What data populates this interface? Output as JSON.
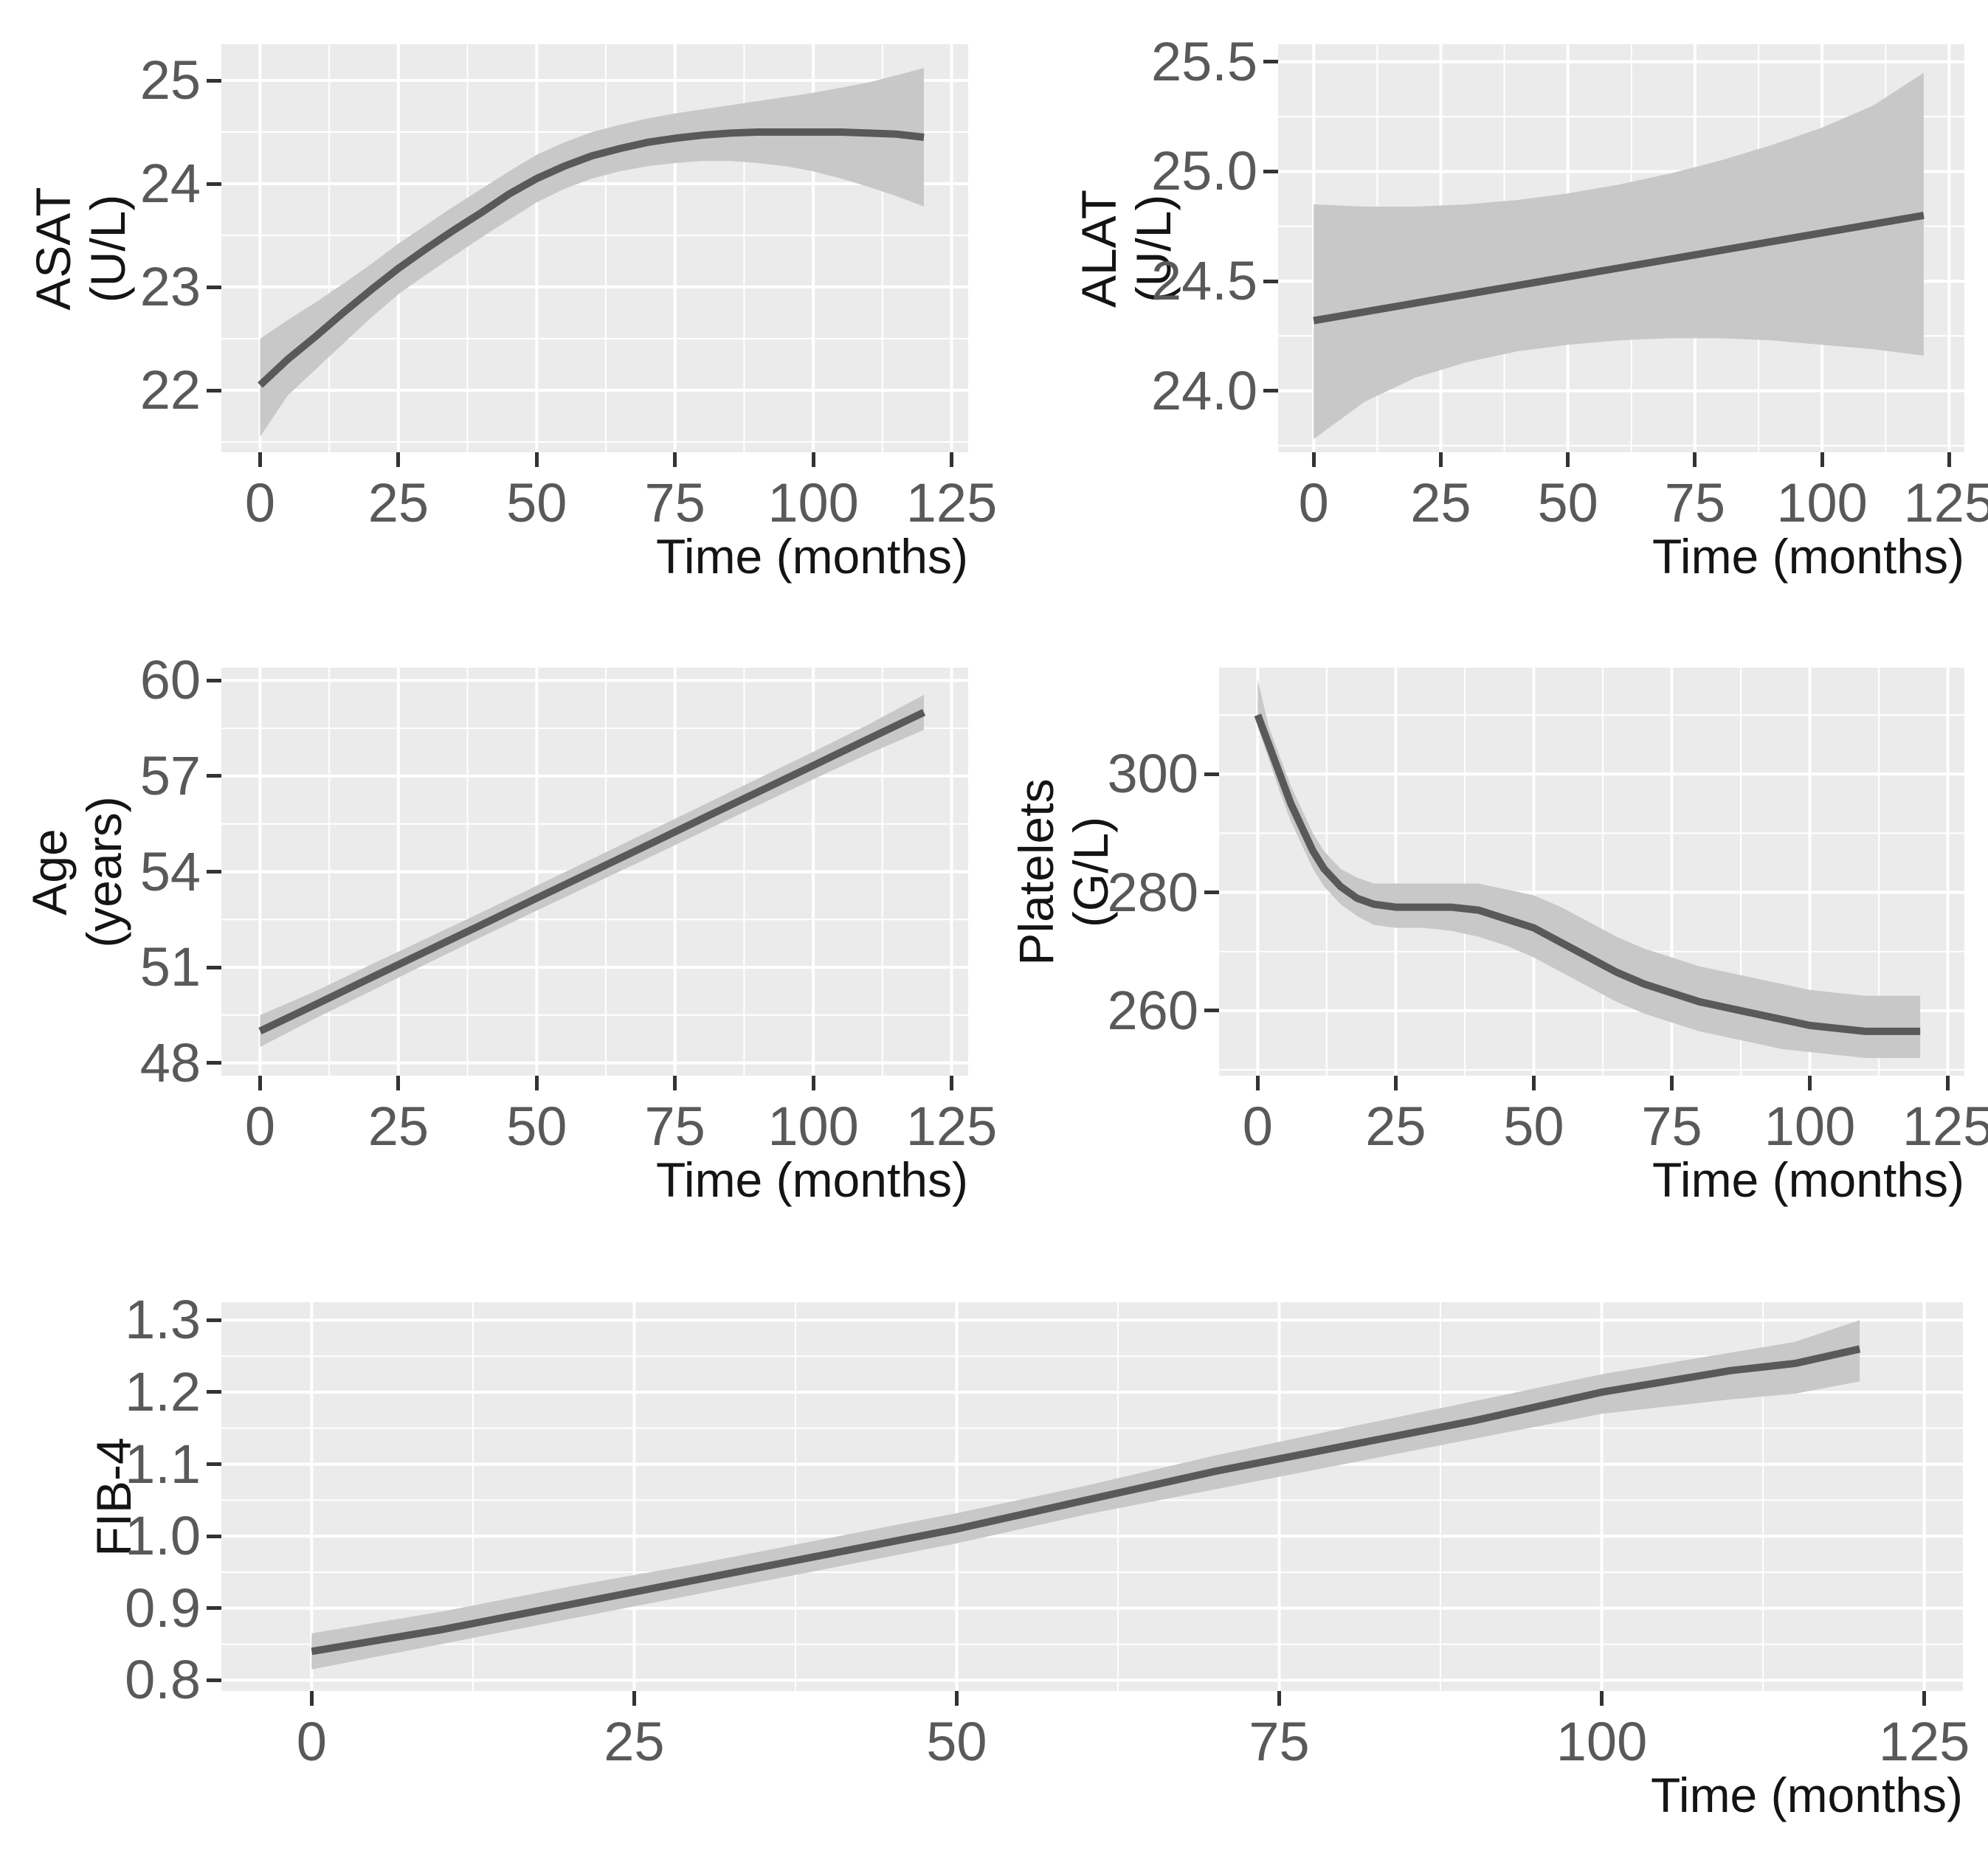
{
  "figure": {
    "kind": "multi-panel smoothed trend figure",
    "x_axis_label": "Time (months)"
  },
  "style": {
    "panel_background": "#ebebeb",
    "grid_major": "#ffffff",
    "grid_minor": "#f7f7f7",
    "band_fill": "#c8c8c8",
    "line_color": "#595959",
    "tick_color": "#333333",
    "tick_text_color": "#595959",
    "axis_title_color": "#141414"
  },
  "chart_data": [
    {
      "type": "line",
      "panel": "ASAT",
      "y_axis": {
        "label": "ASAT (U/L)",
        "label_line1": "ASAT",
        "label_line2": "(U/L)",
        "tick_values": [
          22,
          23,
          24,
          25
        ],
        "tick_labels": [
          "22",
          "23",
          "24",
          "25"
        ]
      },
      "x_axis": {
        "label": "Time (months)",
        "tick_values": [
          0,
          25,
          50,
          75,
          100,
          125
        ],
        "tick_labels": [
          "0",
          "25",
          "50",
          "75",
          "100",
          "125"
        ]
      },
      "xlim": [
        -7,
        128
      ],
      "ylim": [
        21.4,
        25.35
      ],
      "line": {
        "x": [
          0,
          5,
          10,
          15,
          20,
          25,
          30,
          35,
          40,
          45,
          50,
          55,
          60,
          65,
          70,
          75,
          80,
          85,
          90,
          95,
          100,
          105,
          110,
          115,
          120
        ],
        "y": [
          22.05,
          22.3,
          22.52,
          22.75,
          22.97,
          23.18,
          23.37,
          23.55,
          23.72,
          23.9,
          24.05,
          24.17,
          24.27,
          24.34,
          24.4,
          24.44,
          24.47,
          24.49,
          24.5,
          24.5,
          24.5,
          24.5,
          24.49,
          24.48,
          24.45
        ]
      },
      "band": {
        "x": [
          0,
          5,
          10,
          15,
          20,
          25,
          30,
          35,
          40,
          45,
          50,
          55,
          60,
          65,
          70,
          75,
          80,
          85,
          90,
          95,
          100,
          105,
          110,
          115,
          120
        ],
        "lo": [
          21.55,
          21.95,
          22.2,
          22.45,
          22.7,
          22.93,
          23.12,
          23.3,
          23.48,
          23.65,
          23.82,
          23.95,
          24.05,
          24.12,
          24.17,
          24.2,
          24.22,
          24.22,
          24.2,
          24.17,
          24.12,
          24.05,
          23.97,
          23.88,
          23.78
        ],
        "hi": [
          22.5,
          22.68,
          22.85,
          23.03,
          23.22,
          23.42,
          23.6,
          23.78,
          23.95,
          24.12,
          24.28,
          24.4,
          24.5,
          24.57,
          24.63,
          24.68,
          24.72,
          24.76,
          24.8,
          24.84,
          24.88,
          24.93,
          24.98,
          25.05,
          25.12
        ]
      }
    },
    {
      "type": "line",
      "panel": "ALAT",
      "y_axis": {
        "label": "ALAT (U/L)",
        "label_line1": "ALAT",
        "label_line2": "(U/L)",
        "tick_values": [
          24.0,
          24.5,
          25.0,
          25.5
        ],
        "tick_labels": [
          "24.0",
          "24.5",
          "25.0",
          "25.5"
        ]
      },
      "x_axis": {
        "label": "Time (months)",
        "tick_values": [
          0,
          25,
          50,
          75,
          100,
          125
        ],
        "tick_labels": [
          "0",
          "25",
          "50",
          "75",
          "100",
          "125"
        ]
      },
      "xlim": [
        -7,
        128
      ],
      "ylim": [
        23.72,
        25.58
      ],
      "line": {
        "x": [
          0,
          10,
          20,
          30,
          40,
          50,
          60,
          70,
          80,
          90,
          100,
          110,
          120
        ],
        "y": [
          24.32,
          24.36,
          24.4,
          24.44,
          24.48,
          24.52,
          24.56,
          24.6,
          24.64,
          24.68,
          24.72,
          24.76,
          24.8
        ]
      },
      "band": {
        "x": [
          0,
          10,
          20,
          30,
          40,
          50,
          60,
          70,
          80,
          90,
          100,
          110,
          120
        ],
        "lo": [
          23.78,
          23.95,
          24.06,
          24.13,
          24.18,
          24.21,
          24.23,
          24.24,
          24.24,
          24.23,
          24.21,
          24.19,
          24.16
        ],
        "hi": [
          24.85,
          24.84,
          24.84,
          24.85,
          24.87,
          24.9,
          24.94,
          24.99,
          25.05,
          25.12,
          25.2,
          25.3,
          25.45
        ]
      }
    },
    {
      "type": "line",
      "panel": "Age",
      "y_axis": {
        "label": "Age (years)",
        "label_line1": "Age",
        "label_line2": "(years)",
        "tick_values": [
          48,
          51,
          54,
          57,
          60
        ],
        "tick_labels": [
          "48",
          "51",
          "54",
          "57",
          "60"
        ]
      },
      "x_axis": {
        "label": "Time (months)",
        "tick_values": [
          0,
          25,
          50,
          75,
          100,
          125
        ],
        "tick_labels": [
          "0",
          "25",
          "50",
          "75",
          "100",
          "125"
        ]
      },
      "xlim": [
        -7,
        128
      ],
      "ylim": [
        47.6,
        60.4
      ],
      "line": {
        "x": [
          0,
          10,
          20,
          30,
          40,
          50,
          60,
          70,
          80,
          90,
          100,
          110,
          120
        ],
        "y": [
          49.0,
          49.83,
          50.67,
          51.5,
          52.33,
          53.17,
          54.0,
          54.83,
          55.67,
          56.5,
          57.33,
          58.17,
          59.0
        ]
      },
      "band": {
        "x": [
          0,
          10,
          20,
          30,
          40,
          50,
          60,
          70,
          80,
          90,
          100,
          110,
          120
        ],
        "lo": [
          48.5,
          49.4,
          50.25,
          51.1,
          51.95,
          52.78,
          53.6,
          54.42,
          55.25,
          56.08,
          56.9,
          57.7,
          58.45
        ],
        "hi": [
          49.5,
          50.25,
          51.08,
          51.9,
          52.72,
          53.56,
          54.4,
          55.24,
          56.08,
          56.92,
          57.76,
          58.62,
          59.55
        ]
      }
    },
    {
      "type": "line",
      "panel": "Platelets",
      "y_axis": {
        "label": "Platelets (G/L)",
        "label_line1": "Platelets",
        "label_line2": "(G/L)",
        "tick_values": [
          260,
          280,
          300
        ],
        "tick_labels": [
          "260",
          "280",
          "300"
        ]
      },
      "x_axis": {
        "label": "Time (months)",
        "tick_values": [
          0,
          25,
          50,
          75,
          100,
          125
        ],
        "tick_labels": [
          "0",
          "25",
          "50",
          "75",
          "100",
          "125"
        ]
      },
      "xlim": [
        -7,
        128
      ],
      "ylim": [
        249,
        318
      ],
      "line": {
        "x": [
          0,
          2,
          4,
          6,
          8,
          10,
          12,
          15,
          18,
          21,
          25,
          30,
          35,
          40,
          45,
          50,
          55,
          60,
          65,
          70,
          75,
          80,
          85,
          90,
          95,
          100,
          105,
          110,
          115,
          120
        ],
        "y": [
          310,
          305,
          300,
          295,
          291,
          287,
          284,
          281,
          279,
          278,
          277.5,
          277.5,
          277.5,
          277,
          275.5,
          274,
          271.5,
          269,
          266.5,
          264.5,
          263,
          261.5,
          260.5,
          259.5,
          258.5,
          257.5,
          257,
          256.5,
          256.5,
          256.5
        ]
      },
      "band": {
        "x": [
          0,
          2,
          4,
          6,
          8,
          10,
          12,
          15,
          18,
          21,
          25,
          30,
          35,
          40,
          45,
          50,
          55,
          60,
          65,
          70,
          75,
          80,
          85,
          90,
          95,
          100,
          105,
          110,
          115,
          120
        ],
        "lo": [
          308,
          302.5,
          297,
          292,
          288,
          284,
          281,
          278,
          276,
          274.5,
          274,
          274,
          273.5,
          272.5,
          271,
          269,
          266.5,
          264,
          261.5,
          259.5,
          258,
          256.5,
          255.5,
          254.5,
          253.5,
          253,
          252.5,
          252,
          252,
          252
        ],
        "hi": [
          316,
          308,
          303,
          298,
          294,
          290,
          287,
          284,
          282.5,
          281.5,
          281.5,
          281.5,
          281.5,
          281.5,
          280.5,
          279.5,
          277.5,
          275,
          272.5,
          270.5,
          269,
          267.5,
          266.5,
          265.5,
          264.5,
          263.5,
          263,
          262.5,
          262.5,
          262.5
        ]
      }
    },
    {
      "type": "line",
      "panel": "FIB-4",
      "y_axis": {
        "label": "FIB-4",
        "label_line1": "FIB-4",
        "label_line2": "",
        "tick_values": [
          0.8,
          0.9,
          1.0,
          1.1,
          1.2,
          1.3
        ],
        "tick_labels": [
          "0.8",
          "0.9",
          "1.0",
          "1.1",
          "1.2",
          "1.3"
        ]
      },
      "x_axis": {
        "label": "Time (months)",
        "tick_values": [
          0,
          25,
          50,
          75,
          100,
          125
        ],
        "tick_labels": [
          "0",
          "25",
          "50",
          "75",
          "100",
          "125"
        ]
      },
      "xlim": [
        -7,
        128
      ],
      "ylim": [
        0.785,
        1.325
      ],
      "line": {
        "x": [
          0,
          10,
          20,
          30,
          40,
          50,
          60,
          70,
          80,
          90,
          100,
          105,
          110,
          115,
          120
        ],
        "y": [
          0.84,
          0.87,
          0.905,
          0.94,
          0.975,
          1.01,
          1.05,
          1.09,
          1.125,
          1.16,
          1.2,
          1.215,
          1.23,
          1.24,
          1.26
        ]
      },
      "band": {
        "x": [
          0,
          10,
          20,
          30,
          40,
          50,
          60,
          70,
          80,
          90,
          100,
          105,
          110,
          115,
          120
        ],
        "lo": [
          0.815,
          0.85,
          0.885,
          0.92,
          0.955,
          0.99,
          1.03,
          1.065,
          1.1,
          1.135,
          1.17,
          1.18,
          1.19,
          1.198,
          1.215
        ],
        "hi": [
          0.865,
          0.895,
          0.93,
          0.962,
          0.997,
          1.032,
          1.07,
          1.112,
          1.15,
          1.187,
          1.225,
          1.24,
          1.255,
          1.27,
          1.3
        ]
      }
    }
  ]
}
